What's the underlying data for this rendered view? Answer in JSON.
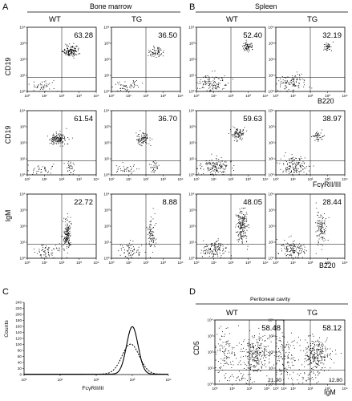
{
  "panels": {
    "A": {
      "label": "A",
      "title": "Bone marrow"
    },
    "B": {
      "label": "B",
      "title": "Spleen"
    },
    "C": {
      "label": "C"
    },
    "D": {
      "label": "D",
      "title": "Peritoneal cavity"
    }
  },
  "axis_text": {
    "row1_y": "CD19",
    "row2_y": "CD19",
    "row3_y": "IgM",
    "row1_x": "B220",
    "row2_x": "FcγRII/III",
    "row3_x": "B220",
    "c_y": "Counts",
    "c_x": "FcγRII/III",
    "d_y": "CD5",
    "d_x": "IgM"
  },
  "tick_labels": {
    "log": [
      "10⁰",
      "10¹",
      "10²",
      "10³",
      "10⁴"
    ],
    "c_x": [
      "10⁰",
      "10¹",
      "10²",
      "10³",
      "10⁴"
    ],
    "c_y": [
      "0",
      "20",
      "40",
      "60",
      "80",
      "100",
      "120",
      "140",
      "160",
      "180",
      "200",
      "220",
      "240"
    ]
  },
  "colors": {
    "dots": "#000000",
    "axis": "#000000"
  },
  "chart_data": [
    {
      "type": "scatter",
      "panel": "A",
      "row": 1,
      "group": "WT",
      "quadrant_percent": "63.28",
      "ylabel": "CD19",
      "scale": "log",
      "xlim": [
        1,
        10000
      ],
      "ylim": [
        1,
        10000
      ]
    },
    {
      "type": "scatter",
      "panel": "A",
      "row": 1,
      "group": "TG",
      "quadrant_percent": "36.50",
      "scale": "log",
      "xlim": [
        1,
        10000
      ],
      "ylim": [
        1,
        10000
      ]
    },
    {
      "type": "scatter",
      "panel": "B",
      "row": 1,
      "group": "WT",
      "quadrant_percent": "52.40",
      "scale": "log",
      "xlim": [
        1,
        10000
      ],
      "ylim": [
        1,
        10000
      ]
    },
    {
      "type": "scatter",
      "panel": "B",
      "row": 1,
      "group": "TG",
      "quadrant_percent": "32.19",
      "xlabel": "B220",
      "scale": "log",
      "xlim": [
        1,
        10000
      ],
      "ylim": [
        1,
        10000
      ]
    },
    {
      "type": "scatter",
      "panel": "A",
      "row": 2,
      "group": "WT",
      "quadrant_percent": "61.54",
      "ylabel": "CD19",
      "scale": "log",
      "xlim": [
        1,
        10000
      ],
      "ylim": [
        1,
        10000
      ]
    },
    {
      "type": "scatter",
      "panel": "A",
      "row": 2,
      "group": "TG",
      "quadrant_percent": "36.70",
      "scale": "log",
      "xlim": [
        1,
        10000
      ],
      "ylim": [
        1,
        10000
      ]
    },
    {
      "type": "scatter",
      "panel": "B",
      "row": 2,
      "group": "WT",
      "quadrant_percent": "59.63",
      "scale": "log",
      "xlim": [
        1,
        10000
      ],
      "ylim": [
        1,
        10000
      ]
    },
    {
      "type": "scatter",
      "panel": "B",
      "row": 2,
      "group": "TG",
      "quadrant_percent": "38.97",
      "xlabel": "FcγRII/III",
      "scale": "log",
      "xlim": [
        1,
        10000
      ],
      "ylim": [
        1,
        10000
      ]
    },
    {
      "type": "scatter",
      "panel": "A",
      "row": 3,
      "group": "WT",
      "quadrant_percent": "22.72",
      "ylabel": "IgM",
      "scale": "log",
      "xlim": [
        1,
        10000
      ],
      "ylim": [
        1,
        10000
      ]
    },
    {
      "type": "scatter",
      "panel": "A",
      "row": 3,
      "group": "TG",
      "quadrant_percent": "8.88",
      "scale": "log",
      "xlim": [
        1,
        10000
      ],
      "ylim": [
        1,
        10000
      ]
    },
    {
      "type": "scatter",
      "panel": "B",
      "row": 3,
      "group": "WT",
      "quadrant_percent": "48.05",
      "scale": "log",
      "xlim": [
        1,
        10000
      ],
      "ylim": [
        1,
        10000
      ]
    },
    {
      "type": "scatter",
      "panel": "B",
      "row": 3,
      "group": "TG",
      "quadrant_percent": "28.44",
      "xlabel": "B220",
      "scale": "log",
      "xlim": [
        1,
        10000
      ],
      "ylim": [
        1,
        10000
      ]
    },
    {
      "type": "line",
      "panel": "C",
      "xlabel": "FcγRII/III",
      "ylabel": "Counts",
      "xscale": "log",
      "xlim": [
        1,
        10000
      ],
      "ylim": [
        0,
        240
      ],
      "series": [
        {
          "style": "solid",
          "peak_x": 1000,
          "peak_y": 158,
          "log_sd": 0.16
        },
        {
          "style": "dashed",
          "peak_x": 900,
          "peak_y": 100,
          "log_sd": 0.24
        }
      ]
    },
    {
      "type": "scatter",
      "panel": "D",
      "group": "WT",
      "quadrant_percent_upper_right": "58.48",
      "quadrant_percent_lower_right": "21.90",
      "ylabel": "CD5",
      "scale": "log",
      "xlim": [
        1,
        10000
      ],
      "ylim": [
        1,
        10000
      ]
    },
    {
      "type": "scatter",
      "panel": "D",
      "group": "TG",
      "quadrant_percent_upper_right": "58.12",
      "quadrant_percent_lower_right": "12.80",
      "xlabel": "IgM",
      "scale": "log",
      "xlim": [
        1,
        10000
      ],
      "ylim": [
        1,
        10000
      ]
    }
  ]
}
